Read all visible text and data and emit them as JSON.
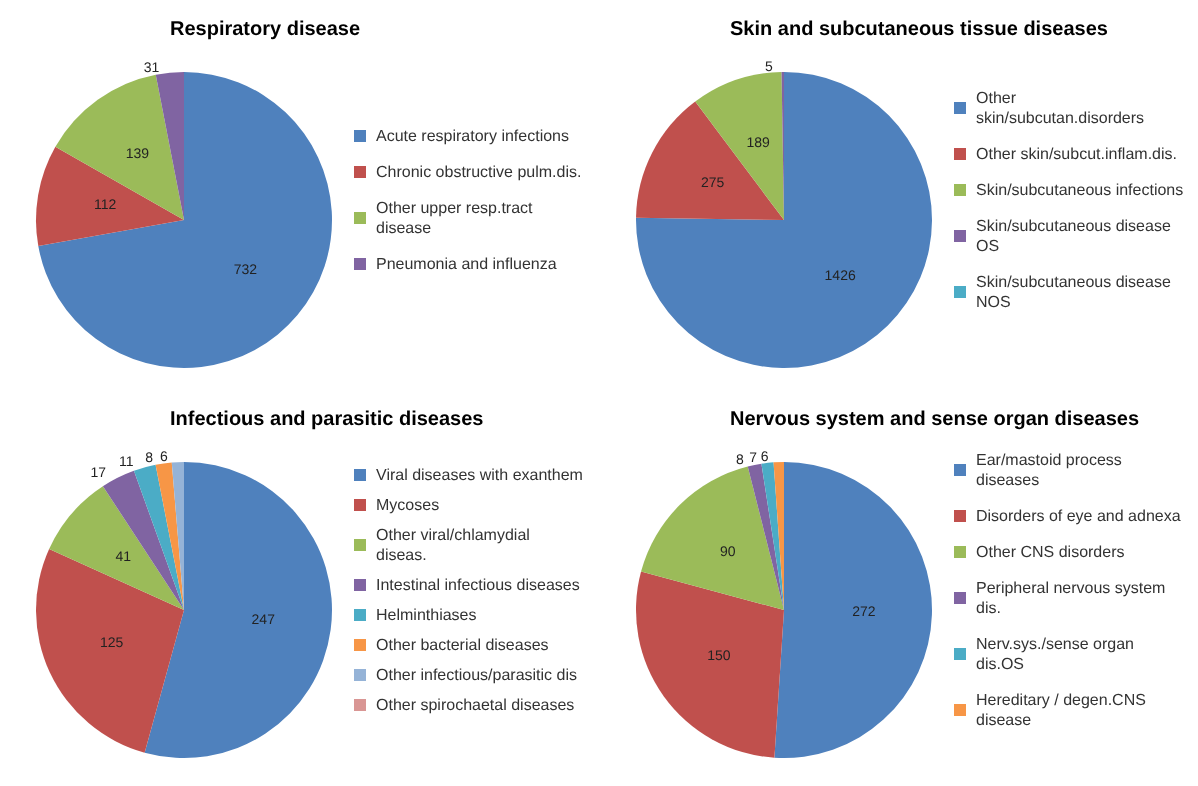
{
  "chart_data": [
    {
      "type": "pie",
      "title": "Respiratory disease",
      "categories": [
        "Acute respiratory infections",
        "Chronic obstructive pulm.dis.",
        "Other upper resp.tract disease",
        "Pneumonia and influenza"
      ],
      "values": [
        732,
        112,
        139,
        31
      ],
      "colors": [
        "#4f81bd",
        "#c0504d",
        "#9bbb59",
        "#8064a2"
      ],
      "data_labels": true,
      "legend": "right"
    },
    {
      "type": "pie",
      "title": "Skin and subcutaneous tissue diseases",
      "categories": [
        "Other skin/subcutan.disorders",
        "Other skin/subcut.inflam.dis.",
        "Skin/subcutaneous infections",
        "Skin/subcutaneous disease OS",
        "Skin/subcutaneous disease NOS"
      ],
      "values": [
        1426,
        275,
        189,
        5,
        null
      ],
      "colors": [
        "#4f81bd",
        "#c0504d",
        "#9bbb59",
        "#8064a2",
        "#4bacc6"
      ],
      "data_labels": true,
      "legend": "right"
    },
    {
      "type": "pie",
      "title": "Infectious and parasitic diseases",
      "categories": [
        "Viral diseases with exanthem",
        "Mycoses",
        "Other viral/chlamydial diseas.",
        "Intestinal infectious diseases",
        "Helminthiases",
        "Other bacterial diseases",
        "Other infectious/parasitic dis",
        "Other spirochaetal diseases"
      ],
      "values": [
        247,
        125,
        41,
        17,
        11,
        8,
        6,
        null
      ],
      "colors": [
        "#4f81bd",
        "#c0504d",
        "#9bbb59",
        "#8064a2",
        "#4bacc6",
        "#f79646",
        "#95b3d7",
        "#d99694"
      ],
      "data_labels": true,
      "legend": "right"
    },
    {
      "type": "pie",
      "title": "Nervous system and sense organ diseases",
      "categories": [
        "Ear/mastoid process diseases",
        "Disorders of eye and adnexa",
        "Other CNS disorders",
        "Peripheral nervous system dis.",
        "Nerv.sys./sense organ dis.OS",
        "Hereditary / degen.CNS disease"
      ],
      "values": [
        272,
        150,
        90,
        8,
        7,
        6
      ],
      "colors": [
        "#4f81bd",
        "#c0504d",
        "#9bbb59",
        "#8064a2",
        "#4bacc6",
        "#f79646"
      ],
      "data_labels": true,
      "legend": "right"
    }
  ]
}
